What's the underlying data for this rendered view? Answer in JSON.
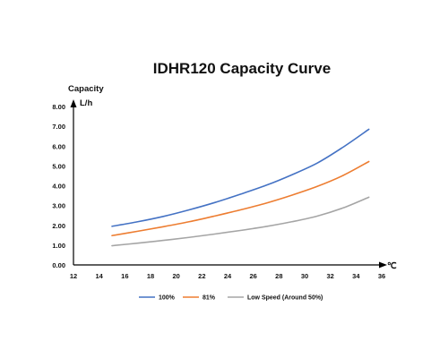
{
  "chart_data": {
    "type": "line",
    "title": "IDHR120  Capacity Curve",
    "ylabel_line1": "Capacity",
    "ylabel_line2": "L/h",
    "xlabel": "℃",
    "xlim": [
      12,
      36
    ],
    "ylim": [
      0,
      8
    ],
    "x_ticks": [
      "12",
      "14",
      "16",
      "18",
      "20",
      "22",
      "24",
      "26",
      "28",
      "30",
      "32",
      "34",
      "36"
    ],
    "y_ticks": [
      "0.00",
      "1.00",
      "2.00",
      "3.00",
      "4.00",
      "5.00",
      "6.00",
      "7.00",
      "8.00"
    ],
    "grid": false,
    "legend_position": "bottom",
    "series": [
      {
        "name": "100%",
        "color": "#4472C4",
        "x": [
          15,
          17,
          19,
          21,
          23,
          25,
          27,
          29,
          31,
          33,
          35
        ],
        "values": [
          1.95,
          2.18,
          2.45,
          2.78,
          3.15,
          3.57,
          4.02,
          4.55,
          5.15,
          5.95,
          6.85
        ]
      },
      {
        "name": "81%",
        "color": "#ED7D31",
        "x": [
          15,
          17,
          19,
          21,
          23,
          25,
          27,
          29,
          31,
          33,
          35
        ],
        "values": [
          1.48,
          1.7,
          1.93,
          2.18,
          2.47,
          2.78,
          3.12,
          3.52,
          3.97,
          4.52,
          5.22
        ]
      },
      {
        "name": "Low Speed (Around 50%)",
        "color": "#A5A5A5",
        "x": [
          15,
          17,
          19,
          21,
          23,
          25,
          27,
          29,
          31,
          33,
          35
        ],
        "values": [
          0.97,
          1.1,
          1.24,
          1.39,
          1.56,
          1.74,
          1.94,
          2.18,
          2.47,
          2.88,
          3.42
        ]
      }
    ]
  }
}
